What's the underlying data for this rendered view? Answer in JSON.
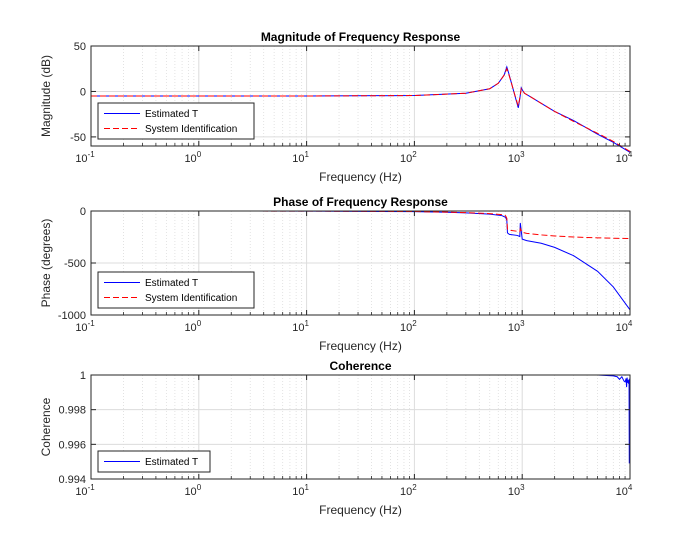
{
  "figure": {
    "background": "#ffffff",
    "axes_color": "#262626",
    "grid_color": "#dcdcdc"
  },
  "series_styles": {
    "Estimated T": {
      "color": "#0000ff",
      "dash": "solid"
    },
    "System Identification": {
      "color": "#ff0000",
      "dash": "dashed"
    }
  },
  "chart_data": [
    {
      "type": "line",
      "title": "Magnitude of Frequency Response",
      "xlabel": "Frequency (Hz)",
      "ylabel": "Magnitude (dB)",
      "xscale": "log",
      "xlim": [
        0.1,
        10000
      ],
      "ylim": [
        -60,
        50
      ],
      "xtick_labels": [
        {
          "base": "10",
          "exp": "-1"
        },
        {
          "base": "10",
          "exp": "0"
        },
        {
          "base": "10",
          "exp": "1"
        },
        {
          "base": "10",
          "exp": "2"
        },
        {
          "base": "10",
          "exp": "3"
        },
        {
          "base": "10",
          "exp": "4"
        }
      ],
      "yticks": [
        50,
        0,
        -50
      ],
      "grid": true,
      "legend": "bottom-left",
      "series": [
        {
          "name": "Estimated T",
          "x": [
            0.1,
            1,
            10,
            100,
            300,
            500,
            600,
            680,
            720,
            750,
            800,
            880,
            920,
            950,
            980,
            1010,
            1050,
            1200,
            1500,
            2000,
            3000,
            5000,
            7000,
            10000
          ],
          "y": [
            -5,
            -5,
            -5,
            -4.5,
            -2,
            3,
            9,
            18,
            27,
            20,
            8,
            -10,
            -18,
            -8,
            4,
            1,
            -2,
            -6,
            -13,
            -22,
            -32,
            -47,
            -56,
            -67
          ]
        },
        {
          "name": "System Identification",
          "x": [
            0.1,
            1,
            10,
            100,
            300,
            500,
            600,
            680,
            720,
            750,
            800,
            880,
            920,
            950,
            980,
            1010,
            1050,
            1200,
            1500,
            2000,
            3000,
            5000,
            7000,
            10000
          ],
          "y": [
            -5,
            -5,
            -5,
            -4.5,
            -2,
            3,
            9,
            18,
            25,
            19,
            8,
            -9,
            -16,
            -7,
            3,
            1,
            -2,
            -6,
            -13,
            -22,
            -33,
            -46,
            -55,
            -66
          ]
        }
      ]
    },
    {
      "type": "line",
      "title": "Phase of Frequency Response",
      "xlabel": "Frequency (Hz)",
      "ylabel": "Phase (degrees)",
      "xscale": "log",
      "xlim": [
        0.1,
        10000
      ],
      "ylim": [
        -1000,
        0
      ],
      "xtick_labels": [
        {
          "base": "10",
          "exp": "-1"
        },
        {
          "base": "10",
          "exp": "0"
        },
        {
          "base": "10",
          "exp": "1"
        },
        {
          "base": "10",
          "exp": "2"
        },
        {
          "base": "10",
          "exp": "3"
        },
        {
          "base": "10",
          "exp": "4"
        }
      ],
      "yticks": [
        0,
        -500,
        -1000
      ],
      "grid": true,
      "legend": "bottom-left",
      "series": [
        {
          "name": "Estimated T",
          "x": [
            0.1,
            1,
            10,
            100,
            200,
            300,
            500,
            650,
            700,
            720,
            730,
            760,
            900,
            950,
            960,
            1000,
            1100,
            1500,
            2000,
            3000,
            5000,
            7000,
            10000
          ],
          "y": [
            0,
            0,
            -1,
            -6,
            -12,
            -18,
            -30,
            -45,
            -60,
            -90,
            -210,
            -225,
            -235,
            -245,
            -115,
            -270,
            -285,
            -310,
            -350,
            -430,
            -580,
            -730,
            -950
          ]
        },
        {
          "name": "System Identification",
          "x": [
            0.1,
            1,
            10,
            100,
            200,
            300,
            500,
            650,
            700,
            720,
            730,
            760,
            900,
            950,
            960,
            1000,
            1100,
            1500,
            2000,
            3000,
            5000,
            7000,
            10000
          ],
          "y": [
            0,
            0,
            -1,
            -5,
            -11,
            -16,
            -25,
            -35,
            -45,
            -70,
            -175,
            -185,
            -195,
            -200,
            -170,
            -205,
            -215,
            -230,
            -240,
            -250,
            -258,
            -262,
            -265
          ]
        }
      ]
    },
    {
      "type": "line",
      "title": "Coherence",
      "xlabel": "Frequency (Hz)",
      "ylabel": "Coherence",
      "xscale": "log",
      "xlim": [
        0.1,
        10000
      ],
      "ylim": [
        0.994,
        1
      ],
      "xtick_labels": [
        {
          "base": "10",
          "exp": "-1"
        },
        {
          "base": "10",
          "exp": "0"
        },
        {
          "base": "10",
          "exp": "1"
        },
        {
          "base": "10",
          "exp": "2"
        },
        {
          "base": "10",
          "exp": "3"
        },
        {
          "base": "10",
          "exp": "4"
        }
      ],
      "yticks": [
        1,
        0.998,
        0.996,
        0.994
      ],
      "grid": true,
      "legend": "bottom-left",
      "series": [
        {
          "name": "Estimated T",
          "x": [
            0.1,
            10,
            100,
            1000,
            3000,
            5000,
            7000,
            7600,
            8000,
            8400,
            8800,
            9000,
            9200,
            9300,
            9400,
            9500,
            9600,
            9700,
            9800,
            9850,
            9900,
            9950,
            10000
          ],
          "y": [
            1,
            1,
            1,
            1,
            1,
            1,
            0.99995,
            0.9999,
            0.99975,
            0.9999,
            0.99965,
            0.9996,
            0.9998,
            0.9993,
            0.99985,
            0.99955,
            0.9997,
            0.9995,
            0.99975,
            0.9949,
            0.9996,
            0.9998,
            0.99935
          ]
        }
      ]
    }
  ]
}
